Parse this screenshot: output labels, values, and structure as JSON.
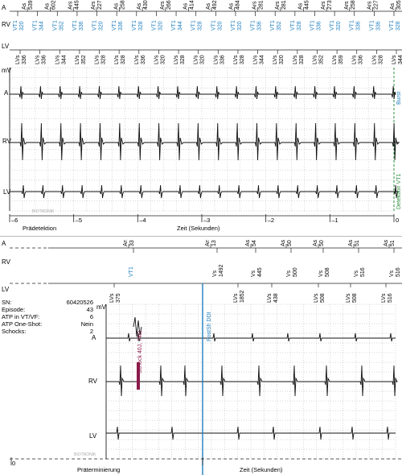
{
  "colors": {
    "ink": "#111111",
    "blue": "#1f7fbf",
    "green": "#2f8f3f",
    "shock": "#8b1a4a",
    "grid": "#9a9a9a"
  },
  "top": {
    "channels": {
      "a": "A",
      "rv": "RV",
      "lv": "LV"
    },
    "unit": "mV",
    "trace_labels": {
      "a": "A",
      "rv": "RV",
      "lv": "LV"
    },
    "a_markers": [
      {
        "t": "As",
        "v": "539"
      },
      {
        "t": "As",
        "v": "602"
      },
      {
        "t": "Ars",
        "v": "445"
      },
      {
        "t": "Ars",
        "v": "227"
      },
      {
        "t": "As",
        "v": "258"
      },
      {
        "t": "As",
        "v": "430"
      },
      {
        "t": "Ars",
        "v": "266"
      },
      {
        "t": "As",
        "v": "414"
      },
      {
        "t": "As",
        "v": "492"
      },
      {
        "t": "As",
        "v": "484"
      },
      {
        "t": "Ars",
        "v": "281"
      },
      {
        "t": "Ars",
        "v": "281"
      },
      {
        "t": "As",
        "v": "445"
      },
      {
        "t": "Ars",
        "v": "273"
      },
      {
        "t": "Ars",
        "v": "258"
      },
      {
        "t": "Ars",
        "v": "227"
      },
      {
        "t": "As",
        "v": "305"
      }
    ],
    "rv_markers": [
      {
        "t": "VT1",
        "v": "320"
      },
      {
        "t": "VT1",
        "v": "344"
      },
      {
        "t": "VT1",
        "v": "352"
      },
      {
        "t": "VT1",
        "v": "336"
      },
      {
        "t": "VT1",
        "v": "320"
      },
      {
        "t": "VT1",
        "v": "336"
      },
      {
        "t": "VT1",
        "v": "328"
      },
      {
        "t": "VT1",
        "v": "320"
      },
      {
        "t": "VT1",
        "v": "344"
      },
      {
        "t": "VT1",
        "v": "328"
      },
      {
        "t": "VT1",
        "v": "320"
      },
      {
        "t": "VT1",
        "v": "320"
      },
      {
        "t": "VT1",
        "v": "336"
      },
      {
        "t": "VT1",
        "v": "352"
      },
      {
        "t": "VT1",
        "v": "328"
      },
      {
        "t": "VT1",
        "v": "336"
      },
      {
        "t": "VT1",
        "v": "320"
      },
      {
        "t": "VT1",
        "v": "336"
      },
      {
        "t": "VT1",
        "v": "336"
      },
      {
        "t": "VT1",
        "v": "328"
      }
    ],
    "lv_markers": [
      {
        "t": "LVs",
        "v": "336"
      },
      {
        "t": "LVs",
        "v": "336"
      },
      {
        "t": "LVs",
        "v": "344"
      },
      {
        "t": "LVs",
        "v": "352"
      },
      {
        "t": "LVs",
        "v": "328"
      },
      {
        "t": "LVs",
        "v": "328"
      },
      {
        "t": "LVs",
        "v": "336"
      },
      {
        "t": "LVs",
        "v": "320"
      },
      {
        "t": "LVs",
        "v": "328"
      },
      {
        "t": "LVs",
        "v": "320"
      },
      {
        "t": "LVs",
        "v": "336"
      },
      {
        "t": "LVs",
        "v": "328"
      },
      {
        "t": "LVs",
        "v": "344"
      },
      {
        "t": "LVs",
        "v": "320"
      },
      {
        "t": "LVs",
        "v": "328"
      },
      {
        "t": "LVs",
        "v": "352"
      },
      {
        "t": "LVs",
        "v": "359"
      },
      {
        "t": "LVs",
        "v": "336"
      },
      {
        "t": "LVs",
        "v": "328"
      },
      {
        "t": "LVs",
        "v": "344"
      }
    ],
    "burst_label": "Burst",
    "detection_label": "Detektion VT1",
    "watermark": "BIOTRONIK",
    "axis_ticks": [
      "–6",
      "–5",
      "–4",
      "–3",
      "–2",
      "–1",
      "0"
    ],
    "phase_label": "Prädetektion",
    "time_label": "Zeit (Sekunden)"
  },
  "bottom": {
    "channels": {
      "a": "A",
      "rv": "RV",
      "lv": "LV"
    },
    "unit": "mV",
    "trace_labels": {
      "a": "A",
      "rv": "RV",
      "lv": "LV"
    },
    "info": [
      {
        "k": "SN:",
        "v": "60420526"
      },
      {
        "k": "Episode:",
        "v": "43"
      },
      {
        "k": "ATP in VT/VF:",
        "v": "6"
      },
      {
        "k": "ATP One-Shot:",
        "v": "Nein"
      },
      {
        "k": "Schocks:",
        "v": "2"
      }
    ],
    "a_markers": [
      {
        "t": "Ars",
        "v": "336"
      },
      {
        "t": "Ars",
        "v": "1391"
      },
      {
        "t": "As",
        "v": "547"
      },
      {
        "t": "As",
        "v": "500"
      },
      {
        "t": "As",
        "v": "508"
      },
      {
        "t": "As",
        "v": "516"
      },
      {
        "t": "As",
        "v": "516"
      }
    ],
    "rv_markers": [
      {
        "t": "VT1",
        "v": ""
      },
      {
        "t": "Vs",
        "v": "1492"
      },
      {
        "t": "Vs",
        "v": "445"
      },
      {
        "t": "Vs",
        "v": "500"
      },
      {
        "t": "Vs",
        "v": "508"
      },
      {
        "t": "Vs",
        "v": "516"
      },
      {
        "t": "Vs",
        "v": "516"
      }
    ],
    "lv_markers": [
      {
        "t": "LVs",
        "v": "375"
      },
      {
        "t": "LVs",
        "v": "1852"
      },
      {
        "t": "LVs",
        "v": "438"
      },
      {
        "t": "LVs",
        "v": "508"
      },
      {
        "t": "LVs",
        "v": "508"
      },
      {
        "t": "LVs",
        "v": "516"
      }
    ],
    "shock_label": "Schock 40J, 74Ω",
    "postsh_label": "PostSh DDI",
    "watermark": "BIOTRONIK",
    "axis_ticks": [
      "0"
    ],
    "phase_label": "Präterminierung",
    "time_label": "Zeit (Sekunden)"
  }
}
